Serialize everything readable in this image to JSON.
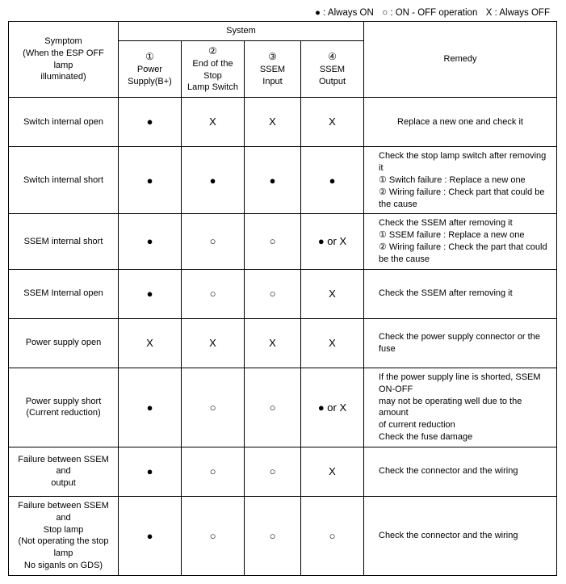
{
  "legend": {
    "filled": "● : Always ON",
    "open": "○ : ON - OFF operation",
    "x": "X : Always OFF"
  },
  "headers": {
    "symptom_l1": "Symptom",
    "symptom_l2": "(When the ESP OFF lamp",
    "symptom_l3": "illuminated)",
    "system": "System",
    "col1_num": "①",
    "col1_lbl": "Power Supply(B+)",
    "col2_num": "②",
    "col2_lbl1": "End of the Stop",
    "col2_lbl2": "Lamp Switch",
    "col3_num": "③",
    "col3_lbl": "SSEM Input",
    "col4_num": "④",
    "col4_lbl": "SSEM Output",
    "remedy": "Remedy"
  },
  "rows": [
    {
      "symptom": [
        "Switch internal open"
      ],
      "c1": "●",
      "c2": "X",
      "c3": "X",
      "c4": "X",
      "remedy": [
        "Replace a new one and check it"
      ],
      "remAlign": "center"
    },
    {
      "symptom": [
        "Switch internal short"
      ],
      "c1": "●",
      "c2": "●",
      "c3": "●",
      "c4": "●",
      "remedy": [
        "Check the stop lamp switch after removing it",
        "① Switch failure : Replace a new one",
        "② Wiring failure : Check part that could be",
        "the cause"
      ],
      "remAlign": "left"
    },
    {
      "symptom": [
        "SSEM internal short"
      ],
      "c1": "●",
      "c2": "○",
      "c3": "○",
      "c4": "● or X",
      "remedy": [
        "Check the SSEM after removing it",
        "① SSEM failure : Replace a new one",
        "② Wiring failure : Check the part that could",
        "be the cause"
      ],
      "remAlign": "left"
    },
    {
      "symptom": [
        "SSEM Internal open"
      ],
      "c1": "●",
      "c2": "○",
      "c3": "○",
      "c4": "X",
      "remedy": [
        "Check the SSEM after removing it"
      ],
      "remAlign": "left"
    },
    {
      "symptom": [
        "Power supply open"
      ],
      "c1": "X",
      "c2": "X",
      "c3": "X",
      "c4": "X",
      "remedy": [
        "Check the power supply connector or the fuse"
      ],
      "remAlign": "left"
    },
    {
      "symptom": [
        "Power supply short",
        "(Current reduction)"
      ],
      "c1": "●",
      "c2": "○",
      "c3": "○",
      "c4": "● or X",
      "remedy": [
        "If the power supply line is shorted, SSEM ON-OFF",
        "may not be operating well due to the amount",
        "of current reduction",
        "Check the fuse damage"
      ],
      "remAlign": "left"
    },
    {
      "symptom": [
        "Failure between SSEM and",
        "output"
      ],
      "c1": "●",
      "c2": "○",
      "c3": "○",
      "c4": "X",
      "remedy": [
        "Check the connector and the wiring"
      ],
      "remAlign": "left"
    },
    {
      "symptom": [
        "Failure between SSEM and",
        "Stop lamp",
        "(Not operating the stop lamp",
        "No siganls on GDS)"
      ],
      "c1": "●",
      "c2": "○",
      "c3": "○",
      "c4": "○",
      "remedy": [
        "Check the connector and the wiring"
      ],
      "remAlign": "left"
    }
  ]
}
